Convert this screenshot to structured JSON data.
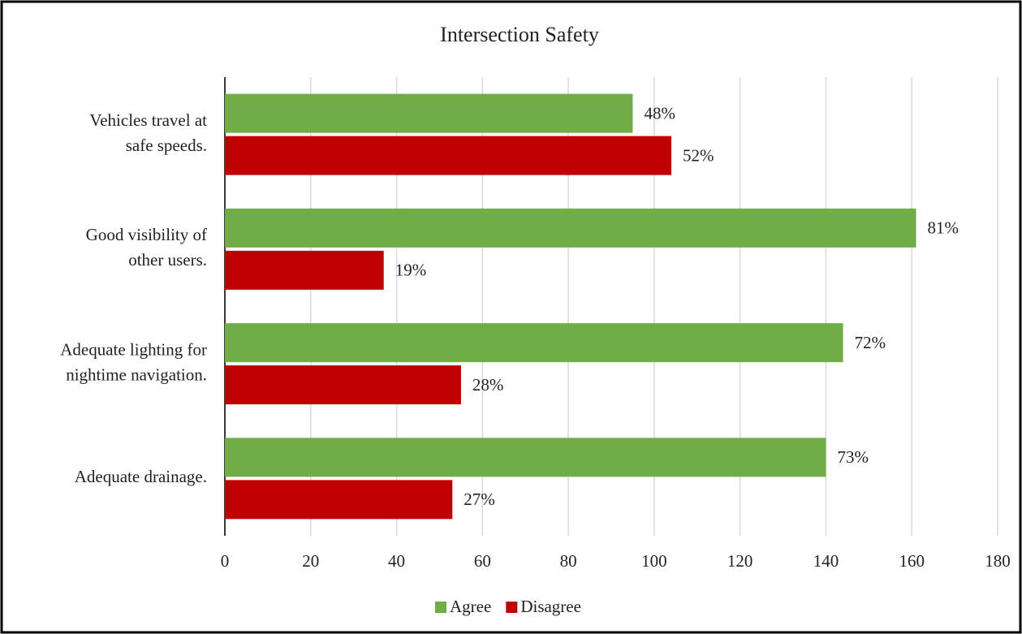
{
  "chart_data": {
    "type": "hbar",
    "title": "Intersection Safety",
    "categories": [
      [
        "Vehicles travel at",
        "safe speeds."
      ],
      [
        "Good visibility of",
        "other users."
      ],
      [
        "Adequate lighting for",
        "nightime navigation."
      ],
      [
        "Adequate drainage."
      ]
    ],
    "series": [
      {
        "name": "Agree",
        "color": "#70ad47",
        "values": [
          95,
          161,
          144,
          140
        ],
        "value_labels": [
          "48%",
          "81%",
          "72%",
          "73%"
        ]
      },
      {
        "name": "Disagree",
        "color": "#c00000",
        "values": [
          104,
          37,
          55,
          53
        ],
        "value_labels": [
          "52%",
          "19%",
          "28%",
          "27%"
        ]
      }
    ],
    "xlim": [
      0,
      180
    ],
    "xticks": [
      0,
      20,
      40,
      60,
      80,
      100,
      120,
      140,
      160,
      180
    ],
    "grid": true,
    "legend": "bottom"
  }
}
